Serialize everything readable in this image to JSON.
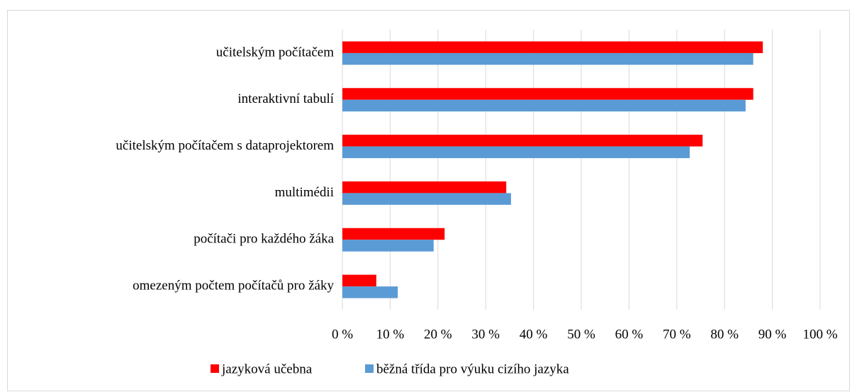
{
  "chart_data": {
    "type": "hbar",
    "categories": [
      "učitelským počítačem",
      "interaktivní tabulí",
      "učitelským počítačem s dataprojektorem",
      "multimédii",
      "počítači pro každého žáka",
      "omezeným počtem počítačů pro žáky"
    ],
    "series": [
      {
        "name": "jazyková učebna",
        "color": "#ff0000",
        "values": [
          88,
          86,
          75.4,
          34.3,
          21.4,
          7.1
        ]
      },
      {
        "name": "běžná třída pro výuku cizího jazyka",
        "color": "#5b9bd5",
        "values": [
          86,
          84.4,
          72.7,
          35.3,
          19.1,
          11.6
        ]
      }
    ],
    "xlim": [
      0,
      100
    ],
    "xticks": [
      {
        "value": 0,
        "label": "0 %"
      },
      {
        "value": 10,
        "label": "10 %"
      },
      {
        "value": 20,
        "label": "20 %"
      },
      {
        "value": 30,
        "label": "30 %"
      },
      {
        "value": 40,
        "label": "40 %"
      },
      {
        "value": 50,
        "label": "50 %"
      },
      {
        "value": 60,
        "label": "60 %"
      },
      {
        "value": 70,
        "label": "70 %"
      },
      {
        "value": 80,
        "label": "80 %"
      },
      {
        "value": 90,
        "label": "90 %"
      },
      {
        "value": 100,
        "label": "100 %"
      }
    ],
    "grid": true,
    "legend": "bottom"
  }
}
